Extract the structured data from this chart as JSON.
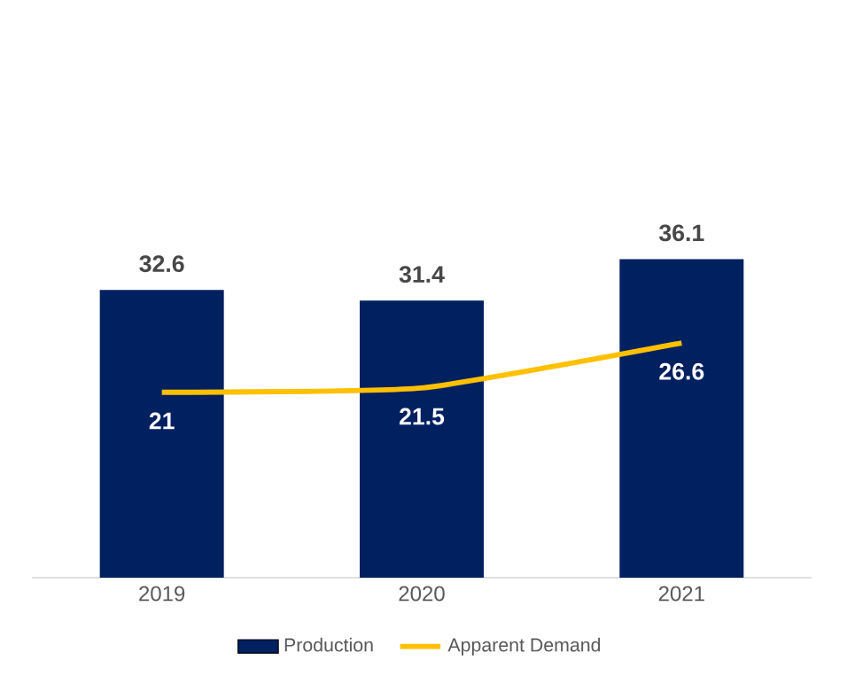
{
  "chart_data": {
    "type": "bar",
    "categories": [
      "2019",
      "2020",
      "2021"
    ],
    "series": [
      {
        "name": "Production",
        "color": "#002060",
        "values": [
          32.6,
          31.4,
          36.1
        ]
      },
      {
        "name": "Apparent Demand",
        "type": "line",
        "color": "#FFC000",
        "values": [
          21,
          21.5,
          26.6
        ]
      }
    ],
    "data_labels": true,
    "legend": "bottom"
  }
}
